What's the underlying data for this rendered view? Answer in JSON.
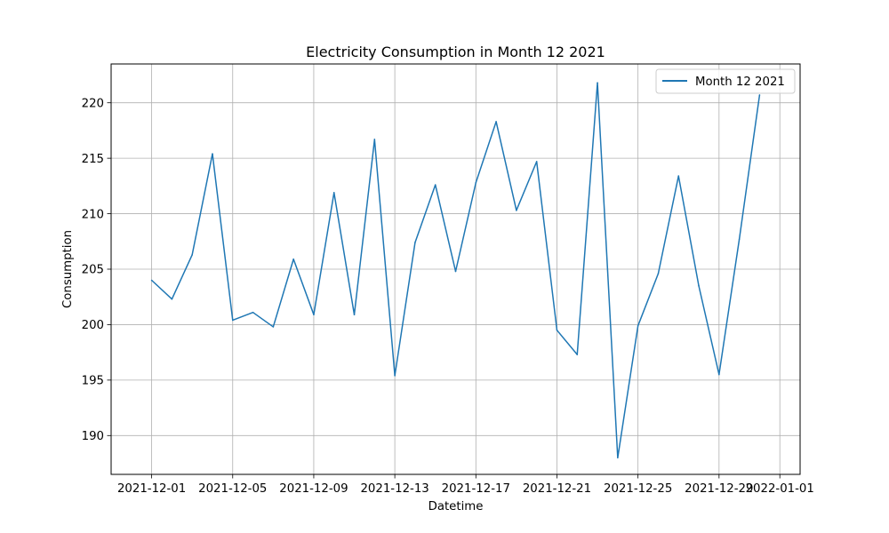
{
  "chart_data": {
    "type": "line",
    "title": "Electricity Consumption in Month 12 2021",
    "xlabel": "Datetime",
    "ylabel": "Consumption",
    "x": [
      "2021-12-01",
      "2021-12-02",
      "2021-12-03",
      "2021-12-04",
      "2021-12-05",
      "2021-12-06",
      "2021-12-07",
      "2021-12-08",
      "2021-12-09",
      "2021-12-10",
      "2021-12-11",
      "2021-12-12",
      "2021-12-13",
      "2021-12-14",
      "2021-12-15",
      "2021-12-16",
      "2021-12-17",
      "2021-12-18",
      "2021-12-19",
      "2021-12-20",
      "2021-12-21",
      "2021-12-22",
      "2021-12-23",
      "2021-12-24",
      "2021-12-25",
      "2021-12-26",
      "2021-12-27",
      "2021-12-28",
      "2021-12-29",
      "2021-12-30",
      "2021-12-31"
    ],
    "series": [
      {
        "name": "Month 12 2021",
        "color": "#1f77b4",
        "values": [
          204.0,
          202.3,
          206.3,
          215.4,
          200.4,
          201.1,
          199.8,
          205.9,
          200.9,
          211.9,
          200.9,
          216.7,
          195.4,
          207.4,
          212.6,
          204.8,
          212.8,
          218.3,
          210.3,
          214.7,
          199.5,
          197.3,
          221.8,
          188.0,
          199.9,
          204.6,
          213.4,
          203.5,
          195.5,
          207.7,
          220.7
        ]
      }
    ],
    "xlim": [
      "2021-11-29",
      "2022-01-02"
    ],
    "ylim": [
      186.5,
      223.5
    ],
    "xticks": [
      "2021-12-01",
      "2021-12-05",
      "2021-12-09",
      "2021-12-13",
      "2021-12-17",
      "2021-12-21",
      "2021-12-25",
      "2021-12-29",
      "2022-01-01"
    ],
    "yticks": [
      190,
      195,
      200,
      205,
      210,
      215,
      220
    ],
    "grid": true,
    "legend_position": "upper right"
  }
}
